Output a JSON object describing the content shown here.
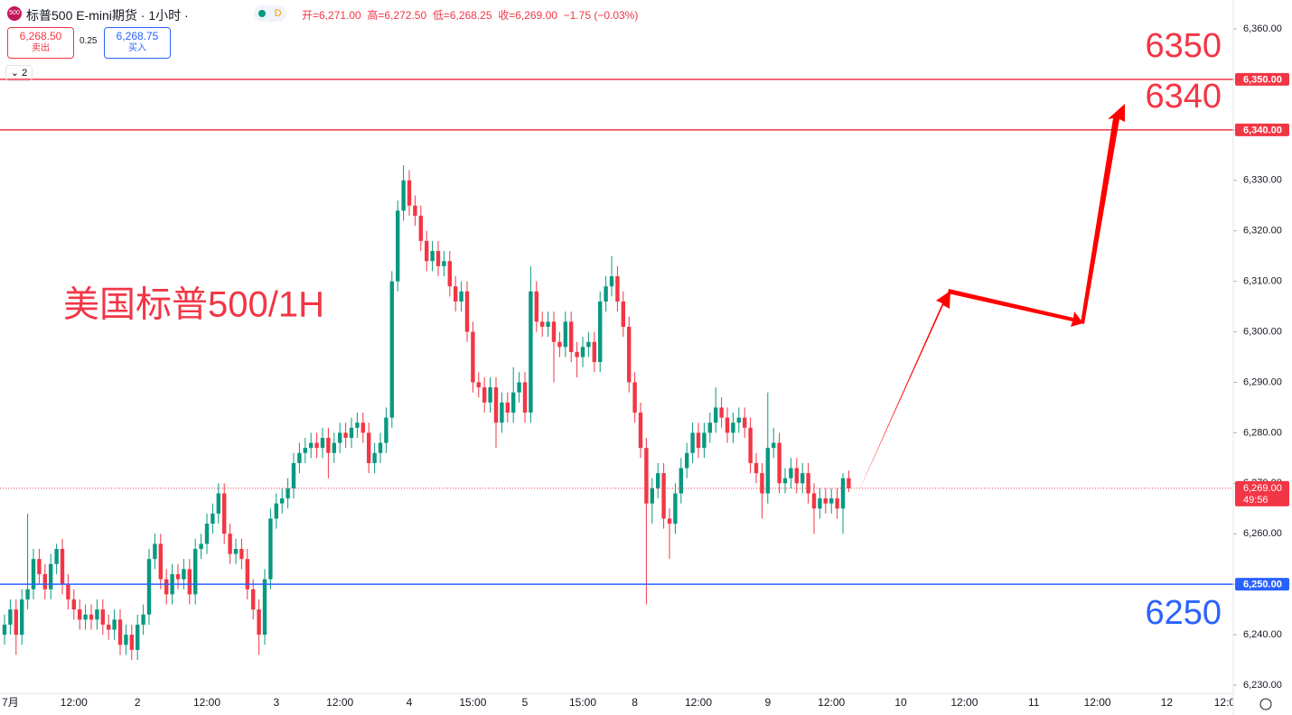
{
  "header": {
    "symbol_icon": "500",
    "title": "标普500 E-mini期货 · 1小时 ·",
    "status": "D",
    "ohlc": [
      "开=6,271.00",
      "高=6,272.50",
      "低=6,268.25",
      "收=6,269.00"
    ],
    "change": "−1.75 (−0.03%)",
    "sell_price": "6,268.50",
    "sell_label": "卖出",
    "spread": "0.25",
    "buy_price": "6,268.75",
    "buy_label": "买入",
    "indicator_count": "2"
  },
  "chart_data": {
    "type": "candlestick",
    "title": "美国标普500/1H",
    "up_color": "#089981",
    "down_color": "#f23645",
    "open": [
      6240,
      6242,
      6245,
      6240,
      6247,
      6249,
      6255,
      6252,
      6249,
      6254,
      6257,
      6250,
      6247,
      6245,
      6243,
      6244,
      6243,
      6245,
      6242,
      6241,
      6243,
      6238,
      6240,
      6237,
      6242,
      6244,
      6255,
      6258,
      6251,
      6248,
      6252,
      6251,
      6253,
      6248,
      6257,
      6258,
      6262,
      6264,
      6268,
      6260,
      6256,
      6257,
      6255,
      6249,
      6245,
      6240,
      6251,
      6263,
      6266,
      6267,
      6269,
      6274,
      6276,
      6277,
      6278,
      6277,
      6279,
      6276,
      6278,
      6280,
      6279,
      6281,
      6282,
      6280,
      6274,
      6276,
      6278,
      6283,
      6310,
      6324,
      6330,
      6325,
      6323,
      6318,
      6314,
      6316,
      6313,
      6314,
      6309,
      6306,
      6308,
      6300,
      6290,
      6289,
      6286,
      6289,
      6282,
      6286,
      6284,
      6288,
      6290,
      6284,
      6308,
      6302,
      6301,
      6302,
      6298,
      6297,
      6302,
      6296,
      6295,
      6297,
      6298,
      6294,
      6306,
      6309,
      6311,
      6306,
      6301,
      6290,
      6284,
      6277,
      6266,
      6269,
      6272,
      6263,
      6262,
      6268,
      6273,
      6276,
      6280,
      6277,
      6280,
      6282,
      6285,
      6283,
      6280,
      6282,
      6283,
      6281,
      6274,
      6272,
      6268,
      6277,
      6278,
      6270,
      6271,
      6273,
      6270,
      6272,
      6268,
      6265,
      6267,
      6266,
      6267,
      6265,
      6271
    ],
    "high": [
      6244,
      6247,
      6247,
      6249,
      6264,
      6257,
      6257,
      6254,
      6256,
      6258,
      6259,
      6252,
      6249,
      6247,
      6246,
      6246,
      6247,
      6247,
      6244,
      6245,
      6245,
      6242,
      6242,
      6244,
      6246,
      6257,
      6260,
      6260,
      6253,
      6254,
      6254,
      6255,
      6255,
      6259,
      6260,
      6264,
      6266,
      6270,
      6270,
      6262,
      6259,
      6259,
      6257,
      6251,
      6247,
      6253,
      6265,
      6268,
      6269,
      6271,
      6276,
      6278,
      6279,
      6280,
      6280,
      6281,
      6281,
      6280,
      6282,
      6282,
      6283,
      6284,
      6284,
      6282,
      6278,
      6280,
      6285,
      6312,
      6326,
      6333,
      6332,
      6327,
      6325,
      6320,
      6318,
      6318,
      6316,
      6316,
      6311,
      6310,
      6310,
      6302,
      6292,
      6291,
      6291,
      6291,
      6288,
      6288,
      6293,
      6292,
      6292,
      6313,
      6310,
      6304,
      6304,
      6304,
      6300,
      6304,
      6304,
      6298,
      6299,
      6300,
      6300,
      6308,
      6311,
      6315,
      6313,
      6308,
      6303,
      6292,
      6286,
      6279,
      6271,
      6274,
      6274,
      6265,
      6270,
      6275,
      6278,
      6282,
      6282,
      6282,
      6284,
      6289,
      6287,
      6285,
      6284,
      6285,
      6285,
      6283,
      6276,
      6274,
      6288,
      6281,
      6280,
      6273,
      6275,
      6275,
      6274,
      6274,
      6270,
      6269,
      6269,
      6269,
      6269,
      6272,
      6272.5
    ],
    "low": [
      6238,
      6240,
      6236,
      6238,
      6245,
      6247,
      6250,
      6247,
      6247,
      6252,
      6248,
      6245,
      6243,
      6241,
      6241,
      6241,
      6241,
      6240,
      6239,
      6239,
      6236,
      6236,
      6235,
      6235,
      6240,
      6242,
      6253,
      6249,
      6246,
      6246,
      6249,
      6249,
      6246,
      6246,
      6255,
      6256,
      6260,
      6262,
      6258,
      6254,
      6254,
      6253,
      6247,
      6243,
      6236,
      6238,
      6249,
      6261,
      6264,
      6265,
      6267,
      6272,
      6274,
      6275,
      6275,
      6275,
      6271,
      6274,
      6276,
      6277,
      6277,
      6279,
      6278,
      6272,
      6272,
      6274,
      6276,
      6281,
      6308,
      6322,
      6323,
      6321,
      6316,
      6312,
      6312,
      6311,
      6311,
      6307,
      6304,
      6304,
      6298,
      6288,
      6287,
      6284,
      6284,
      6277,
      6280,
      6282,
      6282,
      6286,
      6282,
      6282,
      6300,
      6299,
      6299,
      6290,
      6295,
      6295,
      6294,
      6291,
      6293,
      6295,
      6292,
      6292,
      6304,
      6307,
      6304,
      6299,
      6288,
      6282,
      6275,
      6246,
      6262,
      6267,
      6261,
      6255,
      6260,
      6266,
      6271,
      6274,
      6275,
      6275,
      6278,
      6280,
      6281,
      6278,
      6278,
      6280,
      6279,
      6272,
      6270,
      6263,
      6266,
      6275,
      6268,
      6268,
      6269,
      6268,
      6268,
      6266,
      6260,
      6263,
      6264,
      6264,
      6263,
      6260,
      6268.25
    ],
    "close": [
      6242,
      6245,
      6240,
      6247,
      6249,
      6255,
      6252,
      6249,
      6254,
      6257,
      6250,
      6247,
      6245,
      6243,
      6244,
      6243,
      6245,
      6242,
      6241,
      6243,
      6238,
      6240,
      6237,
      6242,
      6244,
      6255,
      6258,
      6251,
      6248,
      6252,
      6251,
      6253,
      6248,
      6257,
      6258,
      6262,
      6264,
      6268,
      6260,
      6256,
      6257,
      6255,
      6249,
      6245,
      6240,
      6251,
      6263,
      6266,
      6267,
      6269,
      6274,
      6276,
      6277,
      6278,
      6277,
      6279,
      6276,
      6278,
      6280,
      6279,
      6281,
      6282,
      6280,
      6274,
      6276,
      6278,
      6283,
      6310,
      6324,
      6330,
      6325,
      6323,
      6318,
      6314,
      6316,
      6313,
      6314,
      6309,
      6306,
      6308,
      6300,
      6290,
      6289,
      6286,
      6289,
      6282,
      6286,
      6284,
      6288,
      6290,
      6284,
      6308,
      6302,
      6301,
      6302,
      6298,
      6297,
      6302,
      6296,
      6295,
      6297,
      6298,
      6294,
      6306,
      6309,
      6311,
      6306,
      6301,
      6290,
      6284,
      6277,
      6266,
      6269,
      6272,
      6263,
      6262,
      6268,
      6273,
      6276,
      6280,
      6277,
      6280,
      6282,
      6285,
      6283,
      6280,
      6282,
      6283,
      6281,
      6274,
      6272,
      6268,
      6277,
      6278,
      6270,
      6271,
      6273,
      6270,
      6272,
      6268,
      6265,
      6267,
      6266,
      6267,
      6265,
      6271,
      6269
    ],
    "xticks": [
      {
        "value": 1,
        "label": "7月"
      },
      {
        "value": 12,
        "label": "12:00"
      },
      {
        "value": 23,
        "label": "2"
      },
      {
        "value": 35,
        "label": "12:00"
      },
      {
        "value": 47,
        "label": "3"
      },
      {
        "value": 58,
        "label": "12:00"
      },
      {
        "value": 70,
        "label": "4"
      },
      {
        "value": 81,
        "label": "15:00"
      },
      {
        "value": 90,
        "label": "5"
      },
      {
        "value": 100,
        "label": "15:00"
      },
      {
        "value": 109,
        "label": "8"
      },
      {
        "value": 120,
        "label": "12:00"
      },
      {
        "value": 132,
        "label": "9"
      },
      {
        "value": 143,
        "label": "12:00"
      },
      {
        "value": 155,
        "label": "10"
      },
      {
        "value": 166,
        "label": "12:00"
      },
      {
        "value": 178,
        "label": "11"
      },
      {
        "value": 189,
        "label": "12:00"
      },
      {
        "value": 201,
        "label": "12"
      },
      {
        "value": 211,
        "label": "12:0"
      }
    ],
    "ylim": [
      6230,
      6360
    ],
    "yticks": [
      {
        "value": 6230,
        "label": "6,230.00"
      },
      {
        "value": 6240,
        "label": "6,240.00"
      },
      {
        "value": 6250,
        "label": "6,250.00"
      },
      {
        "value": 6260,
        "label": "6,260.00"
      },
      {
        "value": 6270,
        "label": "6,270.00"
      },
      {
        "value": 6280,
        "label": "6,280.00"
      },
      {
        "value": 6290,
        "label": "6,290.00"
      },
      {
        "value": 6300,
        "label": "6,300.00"
      },
      {
        "value": 6310,
        "label": "6,310.00"
      },
      {
        "value": 6320,
        "label": "6,320.00"
      },
      {
        "value": 6330,
        "label": "6,330.00"
      },
      {
        "value": 6340,
        "label": "6,340.00"
      },
      {
        "value": 6350,
        "label": "6,350.00"
      },
      {
        "value": 6360,
        "label": "6,360.00"
      }
    ],
    "levels": [
      {
        "value": 6350,
        "label": "6,350.00",
        "annotation": "6350",
        "color": "#f23645"
      },
      {
        "value": 6340,
        "label": "6,340.00",
        "annotation": "6340",
        "color": "#f23645"
      },
      {
        "value": 6250,
        "label": "6,250.00",
        "annotation": "6250",
        "color": "#2962ff"
      }
    ],
    "last_price": {
      "value": 6269,
      "label": "6,269.00",
      "countdown": "49:56",
      "color": "#f23645"
    }
  }
}
